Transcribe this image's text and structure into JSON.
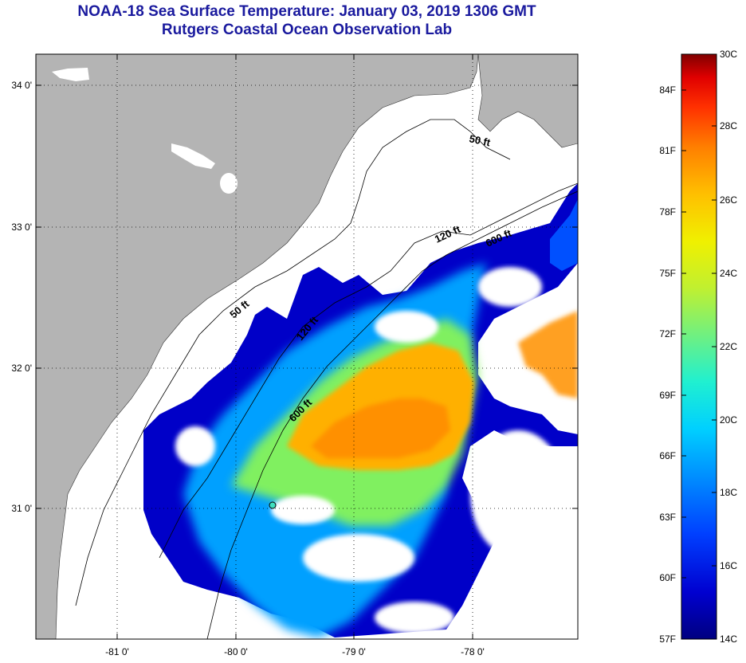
{
  "title": {
    "line1": "NOAA-18 Sea Surface Temperature:  January 03, 2019 1306 GMT",
    "line2": "Rutgers Coastal Ocean Observation Lab"
  },
  "map": {
    "lat_labels": [
      "34 0'",
      "33 0'",
      "32 0'",
      "31 0'"
    ],
    "lon_labels": [
      "-81 0'",
      "-80 0'",
      "-79 0'",
      "-78 0'"
    ],
    "contour_labels": [
      "50 ft",
      "120 ft",
      "600 ft",
      "50 ft",
      "120 ft",
      "600 ft"
    ],
    "colors": {
      "land": "#b4b4b4",
      "no_data": "#ffffff"
    }
  },
  "colorbar": {
    "fahrenheit_labels": [
      "84F",
      "81F",
      "78F",
      "75F",
      "72F",
      "69F",
      "66F",
      "63F",
      "60F",
      "57F"
    ],
    "celsius_labels": [
      "30C",
      "28C",
      "26C",
      "24C",
      "22C",
      "20C",
      "18C",
      "16C",
      "14C"
    ],
    "colors": [
      "#000080",
      "#0000d0",
      "#0040ff",
      "#0090ff",
      "#00d0ff",
      "#20f0d0",
      "#70f080",
      "#c0f030",
      "#f0f000",
      "#ffc000",
      "#ff8000",
      "#ff3000",
      "#e00000",
      "#800000"
    ]
  }
}
